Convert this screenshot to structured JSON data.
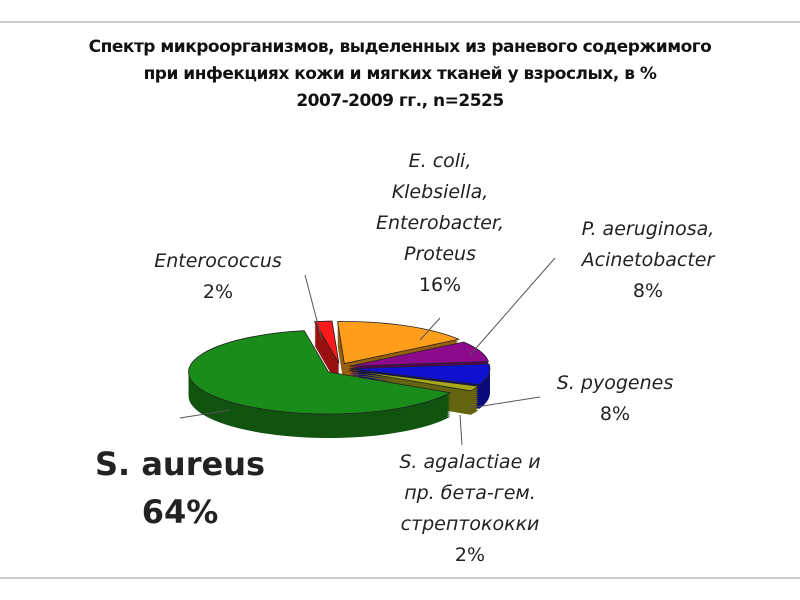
{
  "chart_data": {
    "type": "pie",
    "title": "Спектр микроорганизмов, выделенных из раневого содержимого\nпри инфекциях кожи и мягких тканей у взрослых, в %\n2007-2009 гг., n=2525",
    "categories": [
      "Enterococcus",
      "E. coli,\nKlebsiella,\nEnterobacter,\nProteus",
      "P. aeruginosa,\nAcinetobacter",
      "S. pyogenes",
      "S. agalactiae и\nпр. бета-гем.\nстрептококки",
      "S. aureus"
    ],
    "values": [
      2,
      16,
      8,
      8,
      2,
      64
    ],
    "value_labels": [
      "2%",
      "16%",
      "8%",
      "8%",
      "2%",
      "64%"
    ],
    "colors": [
      "#ff1a1a",
      "#ff9e1a",
      "#8c0a8c",
      "#1010d0",
      "#a8a81a",
      "#1a8c1a"
    ]
  }
}
